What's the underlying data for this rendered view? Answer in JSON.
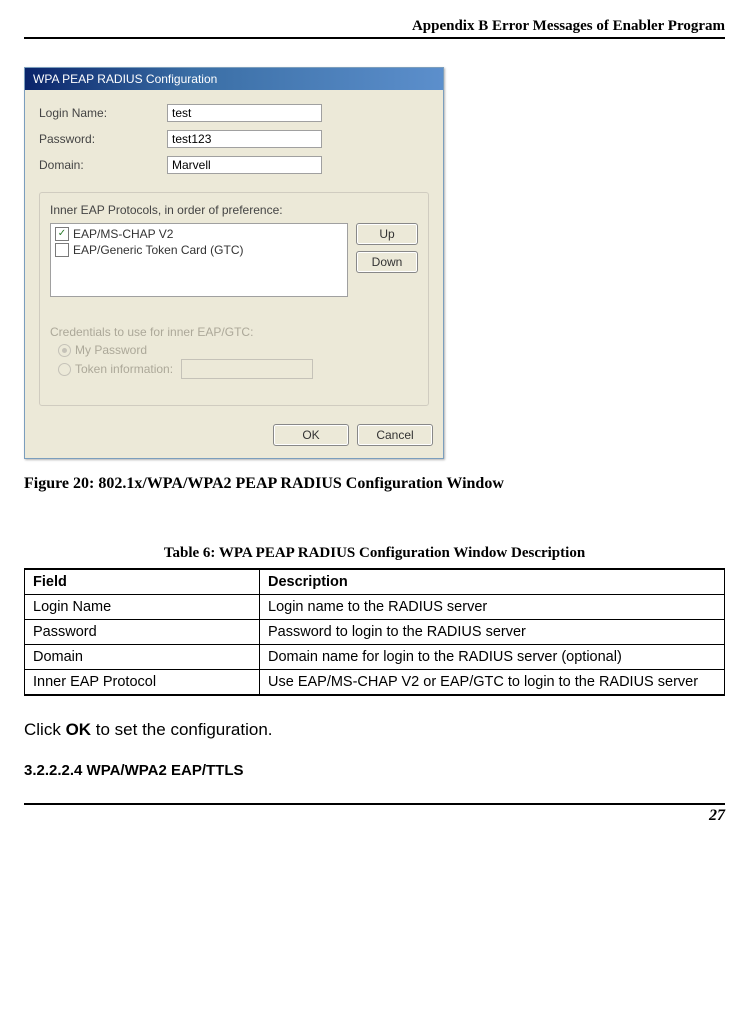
{
  "page": {
    "header": "Appendix B Error Messages of Enabler Program",
    "number": "27"
  },
  "dialog": {
    "title": "WPA PEAP RADIUS Configuration",
    "fields": {
      "login_label": "Login Name:",
      "login_value": "test",
      "password_label": "Password:",
      "password_value": "test123",
      "domain_label": "Domain:",
      "domain_value": "Marvell"
    },
    "protocols": {
      "label": "Inner EAP Protocols, in order of preference:",
      "items": [
        {
          "name": "EAP/MS-CHAP V2",
          "checked": true
        },
        {
          "name": "EAP/Generic Token Card (GTC)",
          "checked": false
        }
      ],
      "up": "Up",
      "down": "Down"
    },
    "cred": {
      "label": "Credentials to use for inner EAP/GTC:",
      "opt1": "My Password",
      "opt2": "Token information:"
    },
    "ok": "OK",
    "cancel": "Cancel"
  },
  "figure": {
    "prefix": "Figure 20: ",
    "title": "802.1x/WPA/WPA2 PEAP RADIUS Configuration Window"
  },
  "table": {
    "caption": "Table 6: WPA PEAP RADIUS Configuration Window Description",
    "headers": [
      "Field",
      "Description"
    ],
    "rows": [
      [
        "Login Name",
        "Login name to the RADIUS server"
      ],
      [
        "Password",
        "Password to login to the RADIUS server"
      ],
      [
        "Domain",
        "Domain name for login to the RADIUS server (optional)"
      ],
      [
        "Inner EAP Protocol",
        "Use EAP/MS-CHAP V2 or EAP/GTC to login to the RADIUS server"
      ]
    ]
  },
  "instruction": {
    "pre": "Click ",
    "bold": "OK",
    "post": " to set the configuration."
  },
  "subheading": "3.2.2.2.4 WPA/WPA2 EAP/TTLS"
}
